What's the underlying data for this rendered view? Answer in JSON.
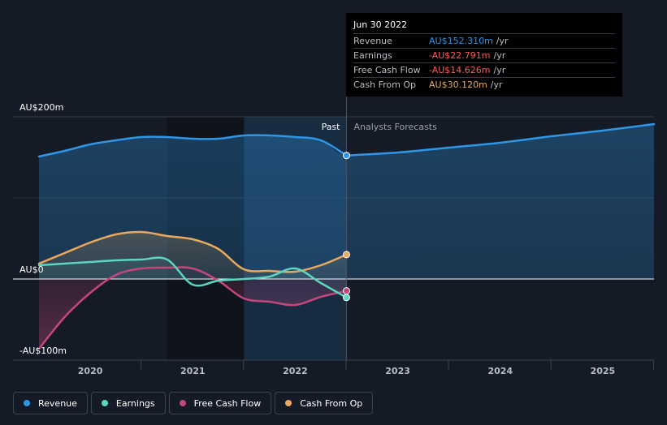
{
  "chart_data": {
    "type": "area",
    "y_unit": "AU$m",
    "ylim": [
      -100,
      200
    ],
    "xlim": [
      2019.5,
      2025.5
    ],
    "y_labels": [
      {
        "value": 200,
        "label": "AU$200m"
      },
      {
        "value": 0,
        "label": "AU$0"
      },
      {
        "value": -100,
        "label": "-AU$100m"
      }
    ],
    "x_ticks": [
      {
        "value": 2020,
        "label": "2020"
      },
      {
        "value": 2021,
        "label": "2021"
      },
      {
        "value": 2022,
        "label": "2022"
      },
      {
        "value": 2023,
        "label": "2023"
      },
      {
        "value": 2024,
        "label": "2024"
      },
      {
        "value": 2025,
        "label": "2025"
      }
    ],
    "past_label": "Past",
    "forecast_label": "Analysts Forecasts",
    "divider_x": 2022.5,
    "highlight_start_x": 2021.5,
    "series": [
      {
        "name": "Revenue",
        "color": "#2f96e6",
        "points": [
          [
            2019.5,
            151
          ],
          [
            2019.75,
            158
          ],
          [
            2020.0,
            166
          ],
          [
            2020.25,
            171
          ],
          [
            2020.5,
            175
          ],
          [
            2020.75,
            175
          ],
          [
            2021.0,
            173
          ],
          [
            2021.25,
            173
          ],
          [
            2021.5,
            177
          ],
          [
            2021.75,
            177
          ],
          [
            2022.0,
            175
          ],
          [
            2022.25,
            171
          ],
          [
            2022.5,
            152.3
          ]
        ],
        "forecast": [
          [
            2022.5,
            152.3
          ],
          [
            2023.0,
            156
          ],
          [
            2023.5,
            162
          ],
          [
            2024.0,
            168
          ],
          [
            2024.5,
            176
          ],
          [
            2025.0,
            183
          ],
          [
            2025.5,
            191
          ]
        ]
      },
      {
        "name": "Earnings",
        "color": "#5cd6c0",
        "points": [
          [
            2019.5,
            17
          ],
          [
            2019.75,
            19
          ],
          [
            2020.0,
            21
          ],
          [
            2020.25,
            23
          ],
          [
            2020.5,
            24
          ],
          [
            2020.75,
            24
          ],
          [
            2021.0,
            -7
          ],
          [
            2021.25,
            -2
          ],
          [
            2021.5,
            0
          ],
          [
            2021.75,
            3
          ],
          [
            2022.0,
            13
          ],
          [
            2022.25,
            -5
          ],
          [
            2022.5,
            -22.79
          ]
        ]
      },
      {
        "name": "Free Cash Flow",
        "color": "#c4467d",
        "points": [
          [
            2019.5,
            -86
          ],
          [
            2019.75,
            -47
          ],
          [
            2020.0,
            -17
          ],
          [
            2020.25,
            5
          ],
          [
            2020.5,
            13
          ],
          [
            2020.75,
            14
          ],
          [
            2021.0,
            13
          ],
          [
            2021.25,
            -2
          ],
          [
            2021.5,
            -24
          ],
          [
            2021.75,
            -28
          ],
          [
            2022.0,
            -32
          ],
          [
            2022.25,
            -22
          ],
          [
            2022.5,
            -14.63
          ]
        ]
      },
      {
        "name": "Cash From Op",
        "color": "#e8a95d",
        "points": [
          [
            2019.5,
            19
          ],
          [
            2019.75,
            32
          ],
          [
            2020.0,
            45
          ],
          [
            2020.25,
            55
          ],
          [
            2020.5,
            58
          ],
          [
            2020.75,
            53
          ],
          [
            2021.0,
            49
          ],
          [
            2021.25,
            37
          ],
          [
            2021.5,
            12
          ],
          [
            2021.75,
            10
          ],
          [
            2022.0,
            9
          ],
          [
            2022.25,
            17
          ],
          [
            2022.5,
            30.12
          ]
        ]
      }
    ]
  },
  "tooltip": {
    "date": "Jun 30 2022",
    "rows": [
      {
        "label": "Revenue",
        "value": "AU$152.310m",
        "unit": "/yr",
        "color": "#2f96e6"
      },
      {
        "label": "Earnings",
        "value": "-AU$22.791m",
        "unit": "/yr",
        "color": "#ff5a5a"
      },
      {
        "label": "Free Cash Flow",
        "value": "-AU$14.626m",
        "unit": "/yr",
        "color": "#ff5a5a"
      },
      {
        "label": "Cash From Op",
        "value": "AU$30.120m",
        "unit": "/yr",
        "color": "#e8a95d"
      }
    ]
  },
  "legend": [
    {
      "label": "Revenue",
      "color": "#2f96e6"
    },
    {
      "label": "Earnings",
      "color": "#5cd6c0"
    },
    {
      "label": "Free Cash Flow",
      "color": "#c4467d"
    },
    {
      "label": "Cash From Op",
      "color": "#e8a95d"
    }
  ]
}
